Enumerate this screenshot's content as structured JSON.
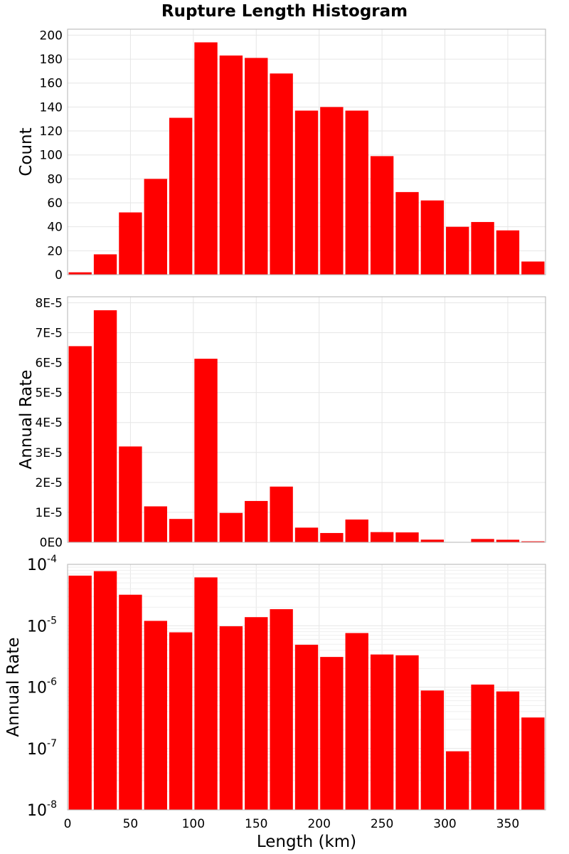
{
  "title": "Rupture Length Histogram",
  "colors": {
    "bar": "#ff0000",
    "grid": "#e6e6e6",
    "frame": "#b3b3b3"
  },
  "chart_data": [
    {
      "type": "bar",
      "panel": "count",
      "ylabel": "Count",
      "ylim": [
        0,
        205
      ],
      "yscale": "linear",
      "yticks": [
        0,
        20,
        40,
        60,
        80,
        100,
        120,
        140,
        160,
        180,
        200
      ],
      "ytick_labels": [
        "0",
        "20",
        "40",
        "60",
        "80",
        "100",
        "120",
        "140",
        "160",
        "180",
        "200"
      ],
      "x": [
        10,
        30,
        50,
        70,
        90,
        110,
        130,
        150,
        170,
        190,
        210,
        230,
        250,
        270,
        290,
        310,
        330,
        350,
        370
      ],
      "bin_width": 20,
      "values": [
        2,
        17,
        52,
        80,
        131,
        194,
        183,
        181,
        168,
        137,
        140,
        137,
        99,
        69,
        62,
        40,
        44,
        37,
        11
      ]
    },
    {
      "type": "bar",
      "panel": "rate-linear",
      "ylabel": "Annual Rate",
      "ylim": [
        0,
        8.2e-05
      ],
      "yscale": "linear",
      "yticks": [
        0,
        1e-05,
        2e-05,
        3e-05,
        4e-05,
        5e-05,
        6e-05,
        7e-05,
        8e-05
      ],
      "ytick_labels": [
        "0E0",
        "1E-5",
        "2E-5",
        "3E-5",
        "4E-5",
        "5E-5",
        "6E-5",
        "7E-5",
        "8E-5"
      ],
      "x": [
        10,
        30,
        50,
        70,
        90,
        110,
        130,
        150,
        170,
        190,
        210,
        230,
        250,
        270,
        290,
        310,
        330,
        350,
        370
      ],
      "bin_width": 20,
      "values": [
        6.55e-05,
        7.75e-05,
        3.2e-05,
        1.2e-05,
        7.8e-06,
        6.13e-05,
        9.8e-06,
        1.38e-05,
        1.86e-05,
        4.9e-06,
        3.1e-06,
        7.6e-06,
        3.4e-06,
        3.3e-06,
        8.8e-07,
        9e-08,
        1.1e-06,
        8.5e-07,
        3.2e-07
      ]
    },
    {
      "type": "bar",
      "panel": "rate-log",
      "ylabel": "Annual Rate",
      "xlabel": "Length (km)",
      "ylim": [
        1e-08,
        0.0001
      ],
      "yscale": "log",
      "ytick_labels": [
        {
          "base": "10",
          "exp": "-8"
        },
        {
          "base": "10",
          "exp": "-7"
        },
        {
          "base": "10",
          "exp": "-6"
        },
        {
          "base": "10",
          "exp": "-5"
        },
        {
          "base": "10",
          "exp": "-4"
        }
      ],
      "xlim": [
        0,
        380
      ],
      "xticks": [
        0,
        50,
        100,
        150,
        200,
        250,
        300,
        350
      ],
      "xtick_labels": [
        "0",
        "50",
        "100",
        "150",
        "200",
        "250",
        "300",
        "350"
      ],
      "x": [
        10,
        30,
        50,
        70,
        90,
        110,
        130,
        150,
        170,
        190,
        210,
        230,
        250,
        270,
        290,
        310,
        330,
        350,
        370
      ],
      "bin_width": 20,
      "values": [
        6.55e-05,
        7.75e-05,
        3.2e-05,
        1.2e-05,
        7.8e-06,
        6.13e-05,
        9.8e-06,
        1.38e-05,
        1.86e-05,
        4.9e-06,
        3.1e-06,
        7.6e-06,
        3.4e-06,
        3.3e-06,
        8.8e-07,
        9e-08,
        1.1e-06,
        8.5e-07,
        3.2e-07
      ]
    }
  ]
}
